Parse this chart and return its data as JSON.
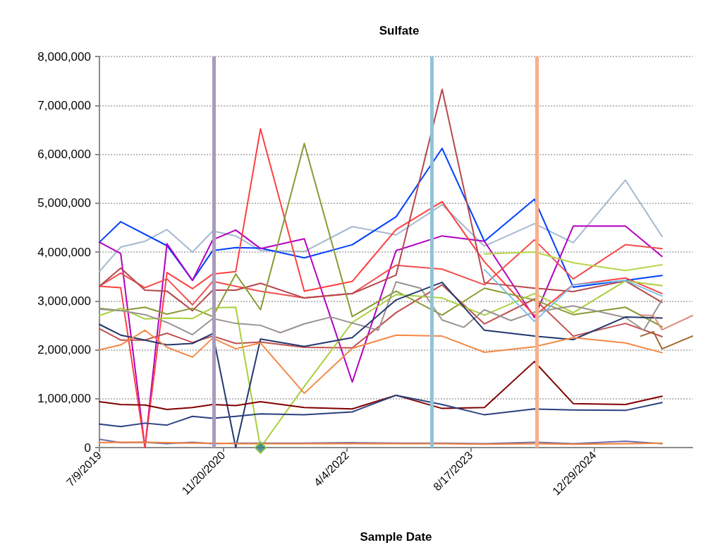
{
  "chart_data": {
    "type": "line",
    "title": "Sulfate",
    "xlabel": "Sample Date",
    "marker": "none",
    "line_style": "solid",
    "grid": "y",
    "x": [
      "2019-07-09",
      "2019-10-03",
      "2020-01-09",
      "2020-04-07",
      "2020-07-19",
      "2020-10-09",
      "2021-01-10",
      "2021-04-20",
      "2021-10-14",
      "2022-04-26",
      "2022-10-20",
      "2023-04-24",
      "2023-10-12",
      "2024-05-01",
      "2024-10-05",
      "2025-05-04",
      "2025-09-29"
    ],
    "xlim": [
      "2019-07-09",
      "2026-01-30"
    ],
    "xticks": [
      {
        "value": "2019-07-09",
        "label": "7/9/2019"
      },
      {
        "value": "2020-11-20",
        "label": "11/20/2020"
      },
      {
        "value": "2022-04-04",
        "label": "4/4/2022"
      },
      {
        "value": "2023-08-17",
        "label": "8/17/2023"
      },
      {
        "value": "2024-12-29",
        "label": "12/29/2024"
      }
    ],
    "ylim": [
      0,
      8000000
    ],
    "yticks": [
      {
        "value": 0,
        "label": "0"
      },
      {
        "value": 1000000,
        "label": "1,000,000"
      },
      {
        "value": 2000000,
        "label": "2,000,000"
      },
      {
        "value": 3000000,
        "label": "3,000,000"
      },
      {
        "value": 4000000,
        "label": "4,000,000"
      },
      {
        "value": 5000000,
        "label": "5,000,000"
      },
      {
        "value": 6000000,
        "label": "6,000,000"
      },
      {
        "value": 7000000,
        "label": "7,000,000"
      },
      {
        "value": 8000000,
        "label": "8,000,000"
      }
    ],
    "ref_lines": [
      {
        "axis": "x",
        "value": "2020-10-13",
        "color": "#a99bbd"
      },
      {
        "axis": "x",
        "value": "2023-03-12",
        "color": "#8fc3d6"
      },
      {
        "axis": "x",
        "value": "2024-05-11",
        "color": "#f9b08a"
      }
    ],
    "series": [
      {
        "color": "#a6b9cf",
        "values": [
          3600000,
          4100000,
          4220000,
          4460000,
          4000000,
          4430000,
          4330000,
          4030000,
          4010000,
          4520000,
          4350000,
          4970000,
          4120000,
          4580000,
          4190000,
          5470000,
          4320000
        ]
      },
      {
        "color": "#0040ff",
        "x": [
          "2019-07-09",
          "2019-10-03",
          "2020-04-07",
          "2020-07-19",
          "2020-10-09",
          "2021-01-10",
          "2021-04-20",
          "2021-10-14",
          "2022-04-26",
          "2022-10-20",
          "2023-04-24",
          "2023-10-12",
          "2024-05-01",
          "2024-10-05",
          "2025-05-04",
          "2025-09-29"
        ],
        "values": [
          4200000,
          4620000,
          4130000,
          3420000,
          4030000,
          4090000,
          4080000,
          3880000,
          4150000,
          4720000,
          6120000,
          4220000,
          5080000,
          3280000,
          3420000,
          3520000
        ]
      },
      {
        "color": "#b400c0",
        "values": [
          4200000,
          3970000,
          0,
          4170000,
          3420000,
          4250000,
          4450000,
          4070000,
          4270000,
          1340000,
          4030000,
          4330000,
          4220000,
          2660000,
          4530000,
          4530000,
          3910000
        ]
      },
      {
        "color": "#ff4040",
        "values": [
          3300000,
          3270000,
          0,
          3580000,
          3250000,
          3550000,
          3600000,
          6520000,
          3200000,
          3400000,
          4460000,
          5030000,
          3800000,
          2700000,
          3330000,
          3470000,
          3150000
        ]
      },
      {
        "color": "#f24e4e",
        "values": [
          3300000,
          3570000,
          3270000,
          3450000,
          2920000,
          3400000,
          3300000,
          3200000,
          3060000,
          3150000,
          3730000,
          3650000,
          3330000,
          4250000,
          3450000,
          4150000,
          4070000
        ]
      },
      {
        "color": "#b5474b",
        "values": [
          3300000,
          3670000,
          3220000,
          3200000,
          2800000,
          3220000,
          3220000,
          3360000,
          3060000,
          3150000,
          3530000,
          7330000,
          3370000,
          3260000,
          3190000,
          3410000,
          2970000
        ]
      },
      {
        "color": "#c0504d",
        "values": [
          2430000,
          2200000,
          2200000,
          2340000,
          2150000,
          2280000,
          2130000,
          2160000,
          2050000,
          2040000,
          2760000,
          3330000,
          2530000,
          3040000,
          2280000,
          2540000,
          2270000
        ]
      },
      {
        "color": "#8a9a34",
        "values": [
          2850000,
          2800000,
          2870000,
          2730000,
          2850000,
          2680000,
          3550000,
          2820000,
          6220000,
          2680000,
          3200000,
          2710000,
          3260000,
          3020000,
          2720000,
          2870000,
          2470000
        ]
      },
      {
        "color": "#a8d03c",
        "values": [
          2700000,
          2850000,
          2630000,
          2650000,
          2640000,
          2860000,
          2870000,
          0,
          1250000,
          2560000,
          3130000,
          3060000,
          2710000,
          3150000,
          2760000,
          3410000,
          3310000
        ]
      },
      {
        "color": "#b4d84a",
        "values": [
          null,
          null,
          null,
          null,
          null,
          null,
          null,
          null,
          null,
          null,
          null,
          null,
          3960000,
          4000000,
          3780000,
          3620000,
          3740000
        ]
      },
      {
        "color": "#9a9390",
        "x": [
          "2019-07-09",
          "2019-10-03",
          "2020-01-09",
          "2020-04-07",
          "2020-07-19",
          "2020-10-09",
          "2021-01-10",
          "2021-04-20",
          "2021-07-09",
          "2021-10-14",
          "2022-01-30",
          "2022-08-09",
          "2022-10-20",
          "2023-01-27",
          "2023-04-24",
          "2023-07-20",
          "2023-10-12",
          "2024-01-27",
          "2024-05-01",
          "2024-10-05",
          "2025-05-04",
          "2025-07-17",
          "2025-09-29"
        ],
        "values": [
          2830000,
          2800000,
          2720000,
          2560000,
          2310000,
          2640000,
          2540000,
          2500000,
          2350000,
          2530000,
          2670000,
          2400000,
          3390000,
          3260000,
          2610000,
          2460000,
          2820000,
          2600000,
          2770000,
          2900000,
          2660000,
          2400000,
          3020000
        ]
      },
      {
        "color": "#24386e",
        "values": [
          2520000,
          2300000,
          2200000,
          2100000,
          2130000,
          2330000,
          0,
          2220000,
          2070000,
          2250000,
          3020000,
          3380000,
          2400000,
          2280000,
          2210000,
          2670000,
          2650000
        ]
      },
      {
        "color": "#f28a46",
        "values": [
          2000000,
          2100000,
          2400000,
          2050000,
          1850000,
          2240000,
          2020000,
          2140000,
          1110000,
          2030000,
          2300000,
          2280000,
          1950000,
          2060000,
          2250000,
          2140000,
          1940000
        ]
      },
      {
        "color": "#800000",
        "values": [
          940000,
          880000,
          870000,
          780000,
          820000,
          880000,
          860000,
          940000,
          820000,
          790000,
          1070000,
          800000,
          820000,
          1760000,
          900000,
          880000,
          1050000
        ]
      },
      {
        "color": "#2c4080",
        "values": [
          480000,
          430000,
          500000,
          460000,
          640000,
          600000,
          640000,
          690000,
          670000,
          730000,
          1070000,
          880000,
          670000,
          790000,
          770000,
          760000,
          920000
        ]
      },
      {
        "color": "#6e6eaa",
        "values": [
          170000,
          100000,
          110000,
          80000,
          110000,
          80000,
          90000,
          90000,
          90000,
          100000,
          90000,
          90000,
          80000,
          110000,
          80000,
          130000,
          80000
        ]
      },
      {
        "color": "#f5813a",
        "values": [
          100000,
          110000,
          110000,
          100000,
          90000,
          90000,
          80000,
          80000,
          80000,
          80000,
          80000,
          80000,
          70000,
          80000,
          70000,
          80000,
          90000
        ]
      },
      {
        "color": "#7ec0e8",
        "values": [
          null,
          null,
          null,
          null,
          null,
          null,
          null,
          null,
          null,
          null,
          null,
          null,
          3640000,
          2580000,
          3330000,
          3420000,
          3100000
        ]
      },
      {
        "color": "#d9907e",
        "x": [
          "2025-07-05",
          "2025-08-25",
          "2025-09-29",
          "2026-01-30"
        ],
        "values": [
          2710000,
          2700000,
          2410000,
          2700000
        ]
      },
      {
        "color": "#a0662c",
        "x": [
          "2025-07-05",
          "2025-08-25",
          "2025-09-29",
          "2026-01-30"
        ],
        "values": [
          2280000,
          2370000,
          2020000,
          2280000
        ]
      },
      {
        "type": "scatter",
        "marker": "diamond",
        "color": "#2e7d8c",
        "x": [
          "2021-04-20"
        ],
        "values": [
          0
        ]
      }
    ]
  }
}
